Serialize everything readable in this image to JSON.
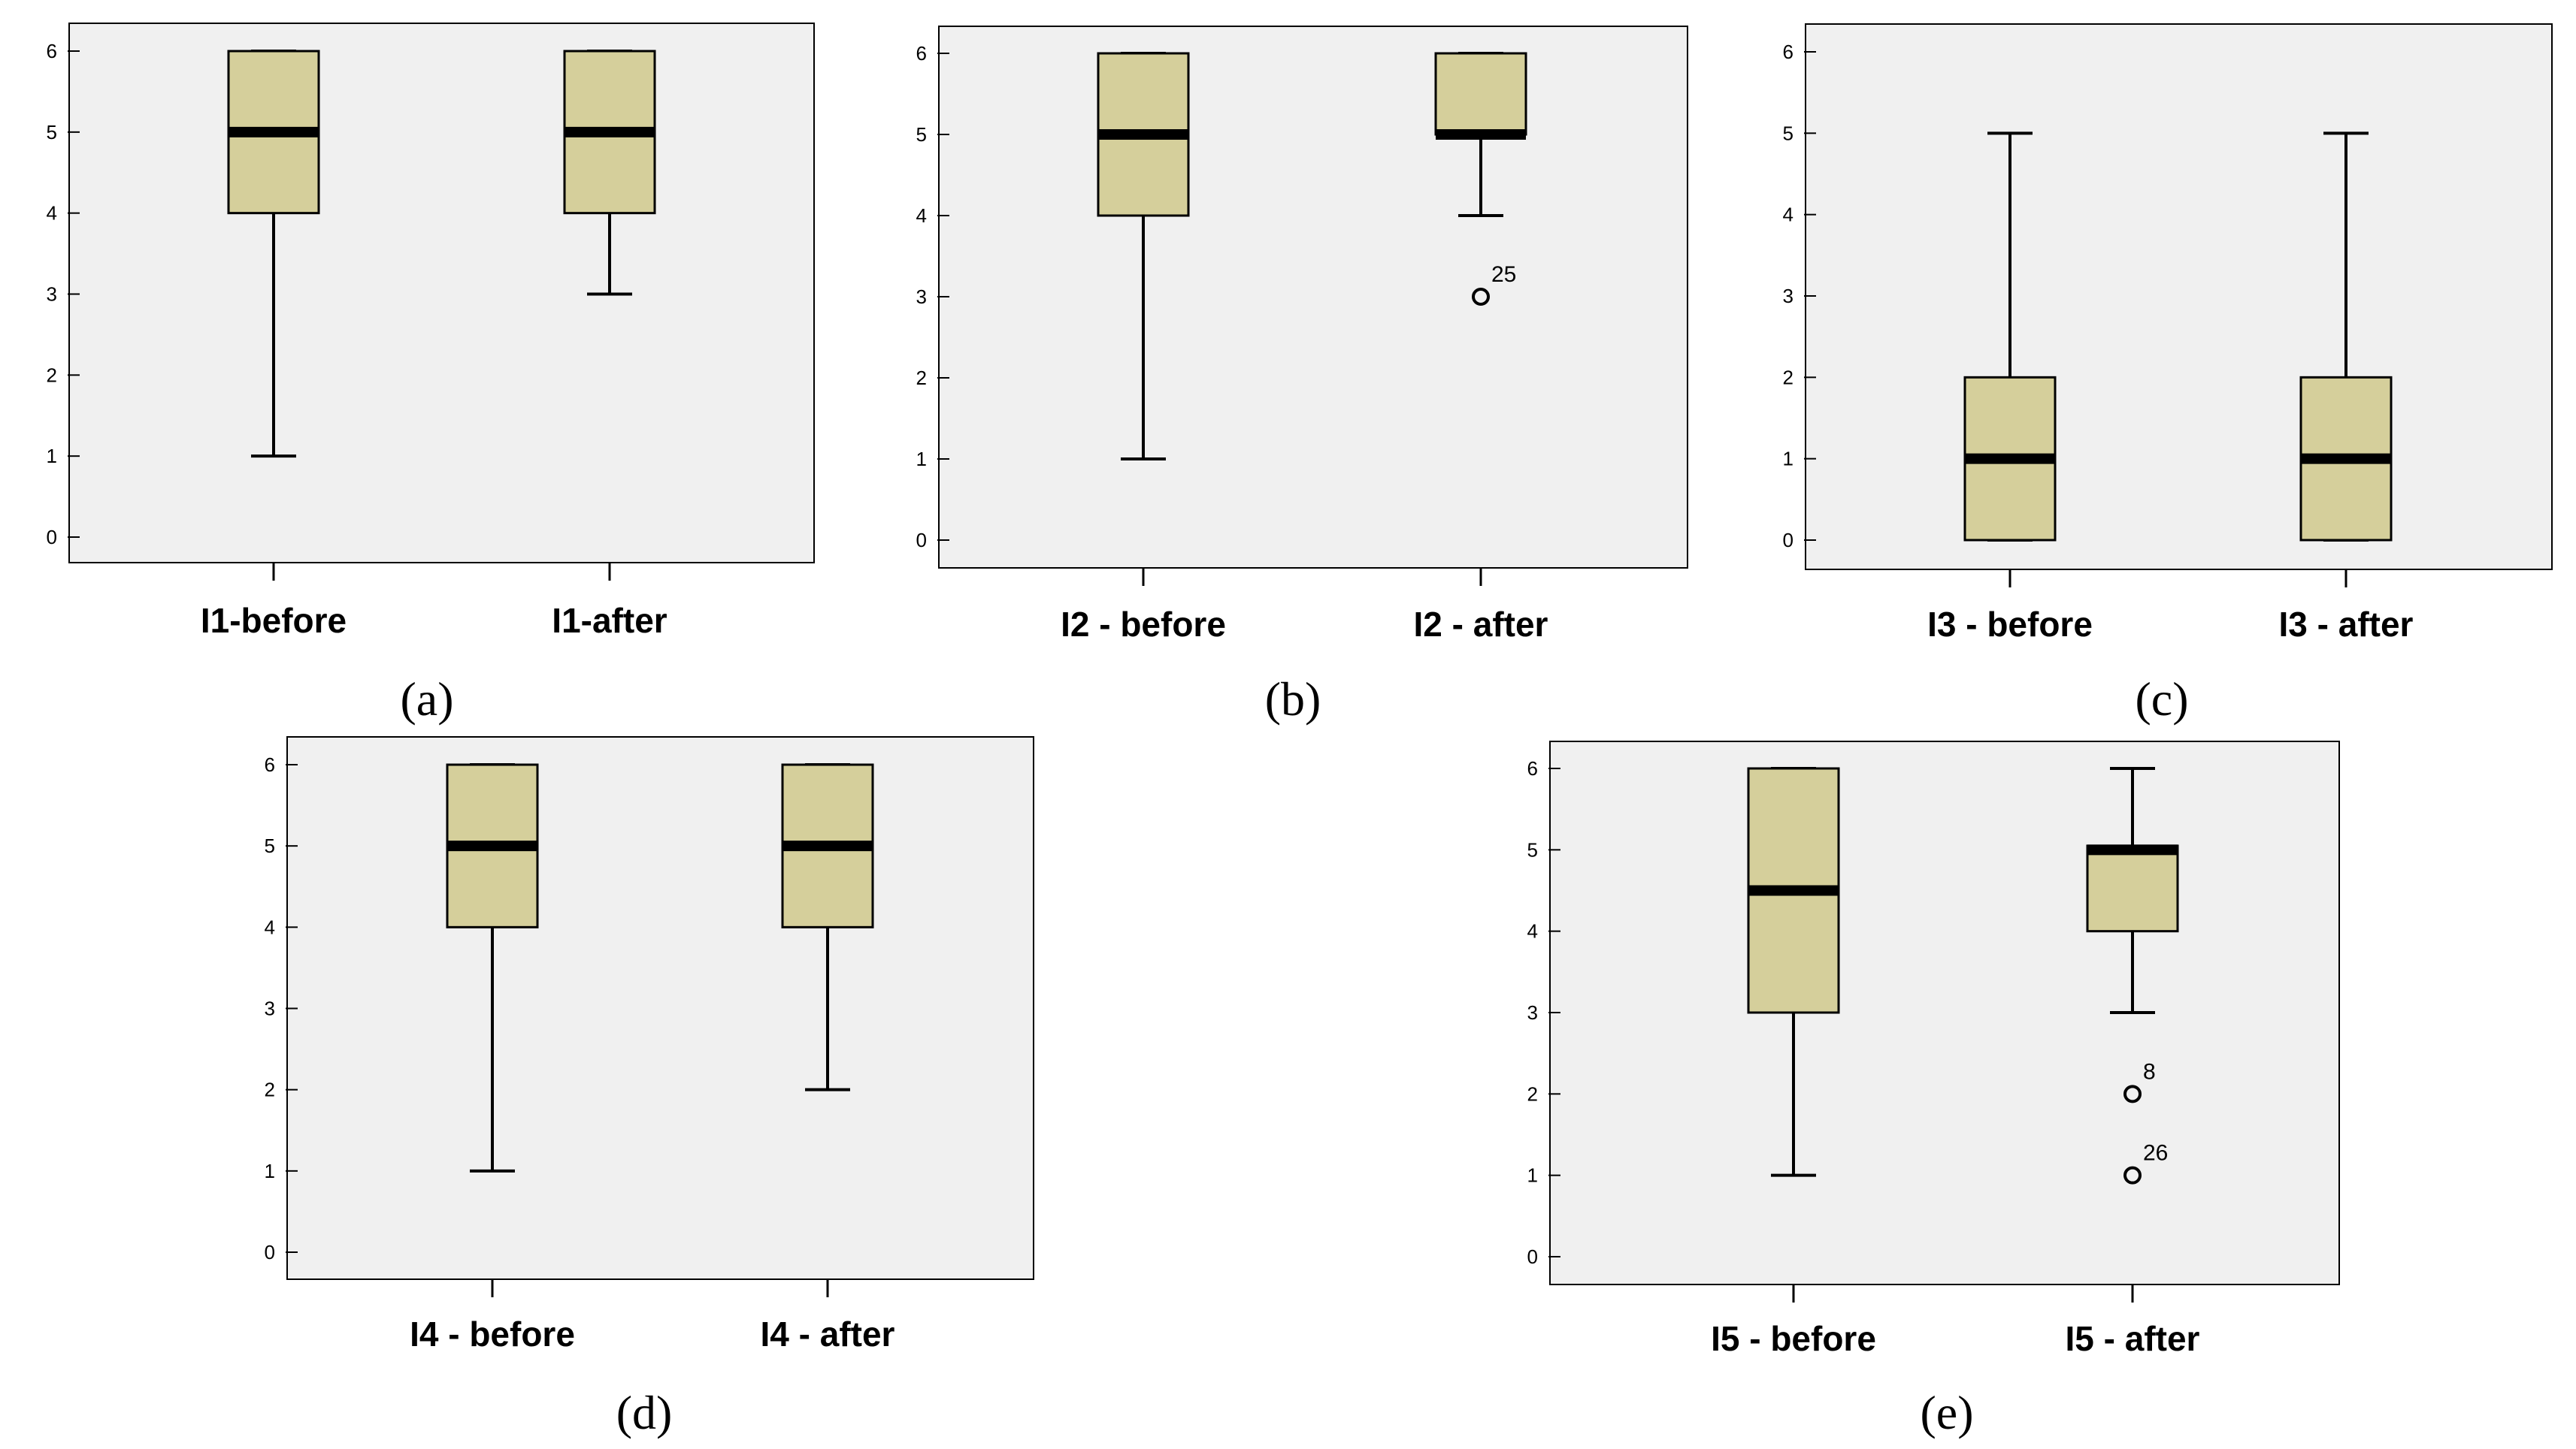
{
  "colors": {
    "plot_bg": "#f0f0f0",
    "box_fill": "#d5cf9b",
    "stroke": "#000000"
  },
  "chart_data": [
    {
      "type": "boxplot",
      "panel_label": "(a)",
      "ylim": [
        0,
        6
      ],
      "yticks": [
        "0",
        "1",
        "2",
        "3",
        "4",
        "5",
        "6"
      ],
      "grid": false,
      "categories": [
        "I1-before",
        "I1-after"
      ],
      "boxes": [
        {
          "min": 1,
          "q1": 4,
          "median": 5,
          "q3": 6,
          "max": 6,
          "outliers": []
        },
        {
          "min": 3,
          "q1": 4,
          "median": 5,
          "q3": 6,
          "max": 6,
          "outliers": []
        }
      ]
    },
    {
      "type": "boxplot",
      "panel_label": "(b)",
      "ylim": [
        0,
        6
      ],
      "yticks": [
        "0",
        "1",
        "2",
        "3",
        "4",
        "5",
        "6"
      ],
      "grid": false,
      "categories": [
        "I2 - before",
        "I2 - after"
      ],
      "boxes": [
        {
          "min": 1,
          "q1": 4,
          "median": 5,
          "q3": 6,
          "max": 6,
          "outliers": []
        },
        {
          "min": 4,
          "q1": 5,
          "median": 5,
          "q3": 6,
          "max": 6,
          "outliers": [
            {
              "value": 3,
              "label": "25"
            }
          ]
        }
      ]
    },
    {
      "type": "boxplot",
      "panel_label": "(c)",
      "ylim": [
        0,
        6
      ],
      "yticks": [
        "0",
        "1",
        "2",
        "3",
        "4",
        "5",
        "6"
      ],
      "grid": false,
      "categories": [
        "I3 - before",
        "I3 - after"
      ],
      "boxes": [
        {
          "min": 0,
          "q1": 0,
          "median": 1,
          "q3": 2,
          "max": 5,
          "outliers": []
        },
        {
          "min": 0,
          "q1": 0,
          "median": 1,
          "q3": 2,
          "max": 5,
          "outliers": []
        }
      ]
    },
    {
      "type": "boxplot",
      "panel_label": "(d)",
      "ylim": [
        0,
        6
      ],
      "yticks": [
        "0",
        "1",
        "2",
        "3",
        "4",
        "5",
        "6"
      ],
      "grid": false,
      "categories": [
        "I4 - before",
        "I4 - after"
      ],
      "boxes": [
        {
          "min": 1,
          "q1": 4,
          "median": 5,
          "q3": 6,
          "max": 6,
          "outliers": []
        },
        {
          "min": 2,
          "q1": 4,
          "median": 5,
          "q3": 6,
          "max": 6,
          "outliers": []
        }
      ]
    },
    {
      "type": "boxplot",
      "panel_label": "(e)",
      "ylim": [
        0,
        6
      ],
      "yticks": [
        "0",
        "1",
        "2",
        "3",
        "4",
        "5",
        "6"
      ],
      "grid": false,
      "categories": [
        "I5 - before",
        "I5 - after"
      ],
      "boxes": [
        {
          "min": 1,
          "q1": 3,
          "median": 4.5,
          "q3": 6,
          "max": 6,
          "outliers": []
        },
        {
          "min": 3,
          "q1": 4,
          "median": 5,
          "q3": 5.05,
          "max": 6,
          "outliers": [
            {
              "value": 2,
              "label": "8"
            },
            {
              "value": 1,
              "label": "26"
            }
          ]
        }
      ]
    }
  ]
}
